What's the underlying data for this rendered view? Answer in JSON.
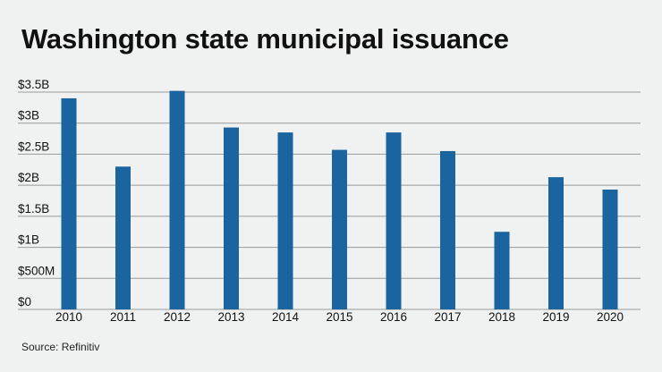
{
  "title": "Washington state municipal issuance",
  "source": "Source: Refinitiv",
  "chart_data": {
    "type": "bar",
    "title": "Washington state municipal issuance",
    "categories": [
      "2010",
      "2011",
      "2012",
      "2013",
      "2014",
      "2015",
      "2016",
      "2017",
      "2018",
      "2019",
      "2020"
    ],
    "values": [
      3.4,
      2.3,
      3.52,
      2.93,
      2.85,
      2.57,
      2.85,
      2.55,
      1.25,
      2.13,
      1.93
    ],
    "unit": "billion USD",
    "ylim": [
      0,
      3.5
    ],
    "yticks": [
      0,
      0.5,
      1,
      1.5,
      2,
      2.5,
      3,
      3.5
    ],
    "ytick_labels": [
      "$0",
      "$500M",
      "$1B",
      "$1.5B",
      "$2B",
      "$2.5B",
      "$3B",
      "$3.5B"
    ],
    "grid": true,
    "bar_color": "#1a64a0",
    "grid_color": "#9a9a9a"
  }
}
